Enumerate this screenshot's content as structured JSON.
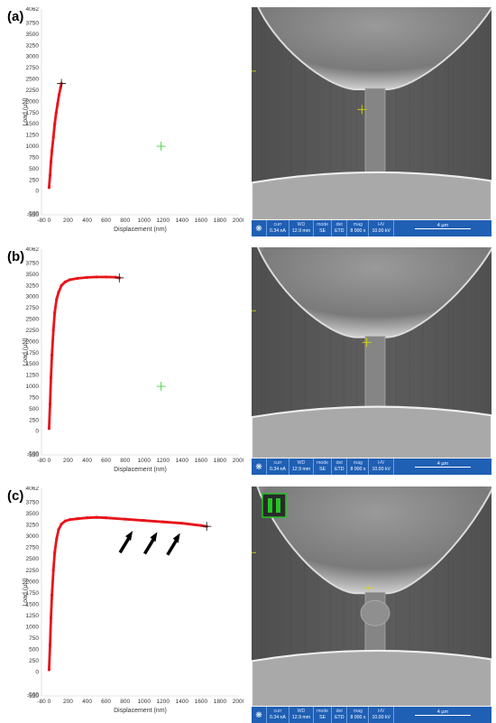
{
  "colors": {
    "curve": "#e8141a",
    "marker": "#3bd43b",
    "endpoint": "#222222",
    "sem_bar": "#1f5fb4",
    "sem_marker": "#d8d800",
    "pause_icon": "#24c324"
  },
  "sem_info": {
    "fields": [
      {
        "key": "curr",
        "value": "0.34 nA"
      },
      {
        "key": "WD",
        "value": "12.9 mm"
      },
      {
        "key": "mode",
        "value": "SE"
      },
      {
        "key": "det",
        "value": "ETD"
      },
      {
        "key": "mag",
        "value": "8 000 x"
      },
      {
        "key": "HV",
        "value": "10.00 kV"
      }
    ],
    "scale_label": "4 µm"
  },
  "chart_data": [
    {
      "panel_label": "(a)",
      "type": "scatter",
      "xlabel": "Displacement (nm)",
      "ylabel": "Load (µN)",
      "xlim": [
        -80,
        2000
      ],
      "ylim": [
        -530,
        4062
      ],
      "x_ticks": [
        "-80",
        "0",
        "200",
        "400",
        "600",
        "800",
        "1000",
        "1200",
        "1400",
        "1600",
        "1800",
        "2000"
      ],
      "x_tick_values": [
        -80,
        0,
        200,
        400,
        600,
        800,
        1000,
        1200,
        1400,
        1600,
        1800,
        2000
      ],
      "y_ticks": [
        "-530",
        "-500",
        "0",
        "250",
        "500",
        "750",
        "1000",
        "1250",
        "1500",
        "1750",
        "2000",
        "2250",
        "2500",
        "2750",
        "3000",
        "3250",
        "3500",
        "3750",
        "4062"
      ],
      "y_tick_values": [
        -530,
        -500,
        0,
        250,
        500,
        750,
        1000,
        1250,
        1500,
        1750,
        2000,
        2250,
        2500,
        2750,
        3000,
        3250,
        3500,
        3750,
        4062
      ],
      "series": [
        {
          "x": [
            0,
            10,
            20,
            30,
            45,
            60,
            75,
            90,
            105,
            120,
            130
          ],
          "y": [
            80,
            350,
            650,
            900,
            1200,
            1500,
            1750,
            1950,
            2150,
            2300,
            2400
          ]
        }
      ],
      "end_point": [
        130,
        2400
      ],
      "green_marker": [
        1180,
        1000
      ],
      "show_arrows": false,
      "sem": {
        "crosshair": [
          0.46,
          0.48
        ],
        "neck_top": 0.36,
        "neck_bottom": 0.78,
        "ring": 0.79,
        "bulge": false,
        "pause_icon": false
      }
    },
    {
      "panel_label": "(b)",
      "type": "scatter",
      "xlabel": "Displacement (nm)",
      "ylabel": "Load (µN)",
      "xlim": [
        -80,
        2000
      ],
      "ylim": [
        -530,
        4062
      ],
      "x_ticks": [
        "-80",
        "0",
        "200",
        "400",
        "600",
        "800",
        "1000",
        "1200",
        "1400",
        "1600",
        "1800",
        "2000"
      ],
      "x_tick_values": [
        -80,
        0,
        200,
        400,
        600,
        800,
        1000,
        1200,
        1400,
        1600,
        1800,
        2000
      ],
      "y_ticks": [
        "-530",
        "-500",
        "0",
        "250",
        "500",
        "750",
        "1000",
        "1250",
        "1500",
        "1750",
        "2000",
        "2250",
        "2500",
        "2750",
        "3000",
        "3250",
        "3500",
        "3750",
        "4062"
      ],
      "y_tick_values": [
        -530,
        -500,
        0,
        250,
        500,
        750,
        1000,
        1250,
        1500,
        1750,
        2000,
        2250,
        2500,
        2750,
        3000,
        3250,
        3500,
        3750,
        4062
      ],
      "series": [
        {
          "x": [
            0,
            10,
            20,
            30,
            45,
            60,
            80,
            100,
            130,
            170,
            220,
            300,
            400,
            500,
            600,
            700,
            740
          ],
          "y": [
            60,
            600,
            1200,
            1700,
            2250,
            2650,
            2950,
            3100,
            3250,
            3330,
            3380,
            3410,
            3430,
            3440,
            3440,
            3435,
            3420
          ]
        }
      ],
      "end_point": [
        740,
        3420
      ],
      "green_marker": [
        1180,
        1000
      ],
      "show_arrows": false,
      "sem": {
        "crosshair": [
          0.48,
          0.45
        ],
        "neck_top": 0.4,
        "neck_bottom": 0.76,
        "ring": 0.77,
        "bulge": false,
        "pause_icon": false
      }
    },
    {
      "panel_label": "(c)",
      "type": "scatter",
      "xlabel": "Displacement (nm)",
      "ylabel": "Load (µN)",
      "xlim": [
        -80,
        2000
      ],
      "ylim": [
        -530,
        4062
      ],
      "x_ticks": [
        "-80",
        "0",
        "200",
        "400",
        "600",
        "800",
        "1000",
        "1200",
        "1400",
        "1600",
        "1800",
        "2000"
      ],
      "x_tick_values": [
        -80,
        0,
        200,
        400,
        600,
        800,
        1000,
        1200,
        1400,
        1600,
        1800,
        2000
      ],
      "y_ticks": [
        "-530",
        "-500",
        "0",
        "250",
        "500",
        "750",
        "1000",
        "1250",
        "1500",
        "1750",
        "2000",
        "2250",
        "2500",
        "2750",
        "3000",
        "3250",
        "3500",
        "3750",
        "4062"
      ],
      "y_tick_values": [
        -530,
        -500,
        0,
        250,
        500,
        750,
        1000,
        1250,
        1500,
        1750,
        2000,
        2250,
        2500,
        2750,
        3000,
        3250,
        3500,
        3750,
        4062
      ],
      "series": [
        {
          "x": [
            0,
            10,
            20,
            30,
            45,
            60,
            80,
            100,
            130,
            170,
            220,
            300,
            400,
            500,
            600,
            800,
            1000,
            1200,
            1400,
            1600,
            1660
          ],
          "y": [
            50,
            600,
            1200,
            1700,
            2250,
            2650,
            2950,
            3150,
            3270,
            3340,
            3370,
            3390,
            3410,
            3420,
            3410,
            3380,
            3350,
            3320,
            3290,
            3240,
            3220
          ]
        }
      ],
      "end_point": [
        1660,
        3220
      ],
      "green_marker": null,
      "show_arrows": true,
      "sem": {
        "crosshair": [
          0.49,
          0.46
        ],
        "neck_top": 0.46,
        "neck_bottom": 0.72,
        "ring": 0.76,
        "bulge": true,
        "pause_icon": true
      }
    }
  ]
}
